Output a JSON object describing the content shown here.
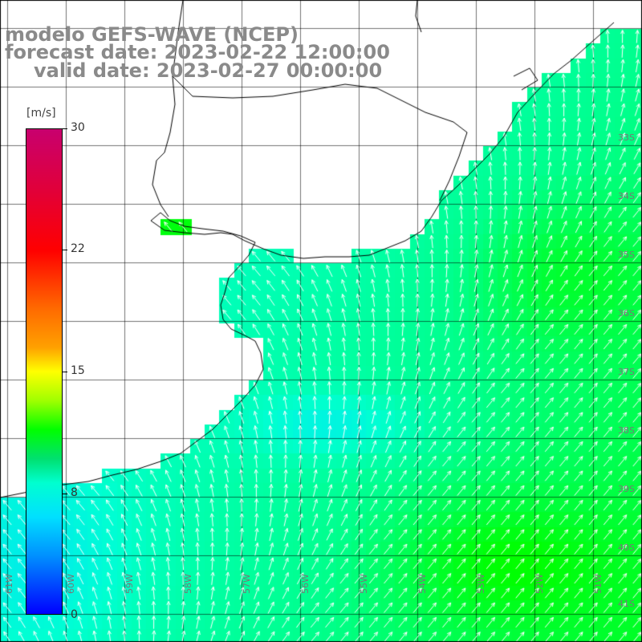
{
  "title": {
    "line1": "modelo GEFS-WAVE (NCEP)",
    "line2": "forecast date: 2023-02-22 12:00:00",
    "line3": "valid date: 2023-02-27 00:00:00"
  },
  "colorbar": {
    "unit": "[m/s]",
    "min": 0,
    "max": 30,
    "ticks": [
      "30",
      "22",
      "15",
      "8",
      "0"
    ],
    "colors_top_to_bottom": [
      "#c8006e",
      "#ff0000",
      "#ff6a00",
      "#ffff00",
      "#00ff00",
      "#00ffd0",
      "#00e0ff",
      "#0090ff",
      "#0000ff"
    ]
  },
  "map": {
    "variable": "wind speed and direction",
    "lat_labels": [
      "33S",
      "34S",
      "35S",
      "36S",
      "37S",
      "38S",
      "39S",
      "40S",
      "41S"
    ],
    "lon_labels": [
      "61W",
      "60W",
      "59W",
      "58W",
      "57W",
      "56W",
      "55W",
      "54W",
      "53W",
      "52W",
      "51W"
    ],
    "colors": {
      "land": "#ffffff",
      "coast": "#000000",
      "grid": "#000000",
      "arrow": "#ffffff"
    }
  }
}
